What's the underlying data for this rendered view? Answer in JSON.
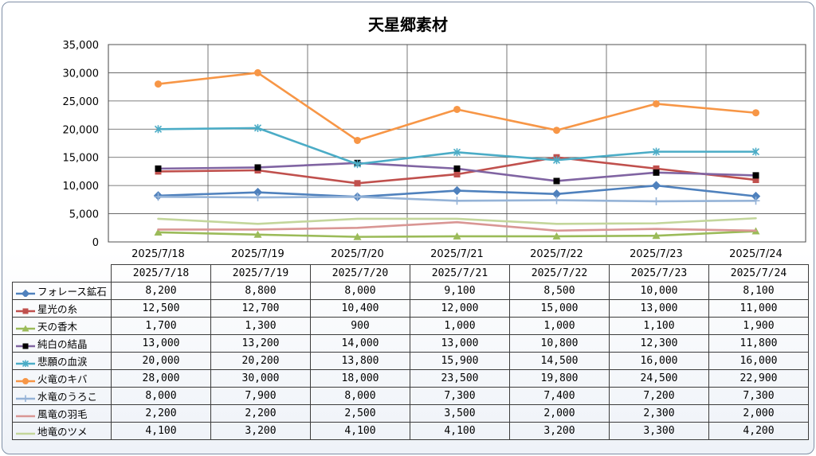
{
  "chart_data": {
    "type": "line",
    "title": "天星郷素材",
    "categories": [
      "2025/7/18",
      "2025/7/19",
      "2025/7/20",
      "2025/7/21",
      "2025/7/22",
      "2025/7/23",
      "2025/7/24"
    ],
    "ylim": [
      0,
      35000
    ],
    "yticks": [
      "35,000",
      "30,000",
      "25,000",
      "20,000",
      "15,000",
      "10,000",
      "5,000",
      "0"
    ],
    "ytick_values": [
      35000,
      30000,
      25000,
      20000,
      15000,
      10000,
      5000,
      0
    ],
    "grid": true,
    "legend": "data-table",
    "series": [
      {
        "name": "フォレース鉱石",
        "color": "#4f81bd",
        "marker": "diamond",
        "values": [
          8200,
          8800,
          8000,
          9100,
          8500,
          10000,
          8100
        ],
        "labels": [
          "8,200",
          "8,800",
          "8,000",
          "9,100",
          "8,500",
          "10,000",
          "8,100"
        ]
      },
      {
        "name": "星光の糸",
        "color": "#c0504d",
        "marker": "square",
        "values": [
          12500,
          12700,
          10400,
          12000,
          15000,
          13000,
          11000
        ],
        "labels": [
          "12,500",
          "12,700",
          "10,400",
          "12,000",
          "15,000",
          "13,000",
          "11,000"
        ]
      },
      {
        "name": "天の香木",
        "color": "#9bbb59",
        "marker": "triangle",
        "values": [
          1700,
          1300,
          900,
          1000,
          1000,
          1100,
          1900
        ],
        "labels": [
          "1,700",
          "1,300",
          "900",
          "1,000",
          "1,000",
          "1,100",
          "1,900"
        ]
      },
      {
        "name": "純白の結晶",
        "color": "#8064a2",
        "marker": "square-black",
        "values": [
          13000,
          13200,
          14000,
          13000,
          10800,
          12300,
          11800
        ],
        "labels": [
          "13,000",
          "13,200",
          "14,000",
          "13,000",
          "10,800",
          "12,300",
          "11,800"
        ]
      },
      {
        "name": "悲願の血涙",
        "color": "#4bacc6",
        "marker": "star",
        "values": [
          20000,
          20200,
          13800,
          15900,
          14500,
          16000,
          16000
        ],
        "labels": [
          "20,000",
          "20,200",
          "13,800",
          "15,900",
          "14,500",
          "16,000",
          "16,000"
        ]
      },
      {
        "name": "火竜のキバ",
        "color": "#f79646",
        "marker": "circle",
        "values": [
          28000,
          30000,
          18000,
          23500,
          19800,
          24500,
          22900
        ],
        "labels": [
          "28,000",
          "30,000",
          "18,000",
          "23,500",
          "19,800",
          "24,500",
          "22,900"
        ]
      },
      {
        "name": "水竜のうろこ",
        "color": "#95b3d7",
        "marker": "plus",
        "values": [
          8000,
          7900,
          8000,
          7300,
          7400,
          7200,
          7300
        ],
        "labels": [
          "8,000",
          "7,900",
          "8,000",
          "7,300",
          "7,400",
          "7,200",
          "7,300"
        ]
      },
      {
        "name": "風竜の羽毛",
        "color": "#d99694",
        "marker": "none",
        "values": [
          2200,
          2200,
          2500,
          3500,
          2000,
          2300,
          2000
        ],
        "labels": [
          "2,200",
          "2,200",
          "2,500",
          "3,500",
          "2,000",
          "2,300",
          "2,000"
        ]
      },
      {
        "name": "地竜のツメ",
        "color": "#c3d69b",
        "marker": "none",
        "values": [
          4100,
          3200,
          4100,
          4100,
          3200,
          3300,
          4200
        ],
        "labels": [
          "4,100",
          "3,200",
          "4,100",
          "4,100",
          "3,200",
          "3,300",
          "4,200"
        ]
      }
    ]
  }
}
